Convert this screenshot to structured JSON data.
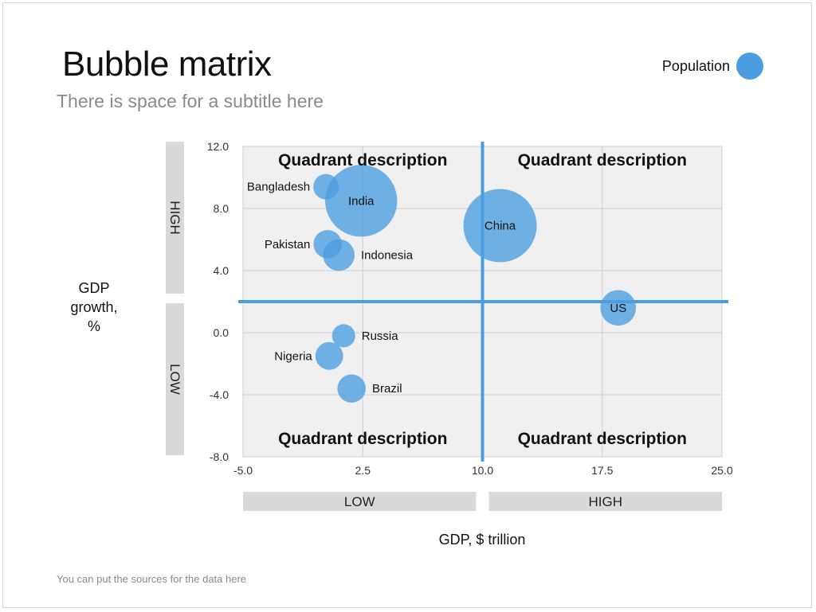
{
  "title": "Bubble matrix",
  "subtitle": "There is space for a subtitle here",
  "legend_label": "Population",
  "source_note": "You can put the sources for the data here",
  "colors": {
    "bubble": "#4a9ee0",
    "divider": "#4a9ee0",
    "plot_bg": "#f0f0f0",
    "band": "#d9d9d9",
    "grid": "#d0d0d0"
  },
  "chart_data": {
    "type": "scatter",
    "bubble": true,
    "title": "Bubble matrix",
    "subtitle": "There is space for a subtitle here",
    "xlabel": "GDP, $ trillion",
    "ylabel": "GDP growth, %",
    "ylabel_lines": [
      "GDP",
      "growth,",
      "%"
    ],
    "xlim": [
      -5.0,
      25.0
    ],
    "ylim": [
      -8.0,
      12.0
    ],
    "x_ticks": [
      -5.0,
      2.5,
      10.0,
      17.5,
      25.0
    ],
    "x_tick_labels": [
      "-5.0",
      "2.5",
      "10.0",
      "17.5",
      "25.0"
    ],
    "y_ticks": [
      -8.0,
      -4.0,
      0.0,
      4.0,
      8.0,
      12.0
    ],
    "y_tick_labels": [
      "-8.0",
      "-4.0",
      "0.0",
      "4.0",
      "8.0",
      "12.0"
    ],
    "grid": true,
    "legend": {
      "label": "Population",
      "position": "top-right"
    },
    "dividers": {
      "x": 10.0,
      "y": 2.0
    },
    "x_bands": [
      "LOW",
      "HIGH"
    ],
    "y_bands": [
      "HIGH",
      "LOW"
    ],
    "quadrant_labels": {
      "top_left": "Quadrant description",
      "top_right": "Quadrant description",
      "bottom_left": "Quadrant description",
      "bottom_right": "Quadrant description"
    },
    "points": [
      {
        "name": "Bangladesh",
        "x": 0.2,
        "y": 9.4,
        "size": 0.17,
        "label_side": "left"
      },
      {
        "name": "India",
        "x": 2.4,
        "y": 8.5,
        "size": 1.35,
        "label_side": "center"
      },
      {
        "name": "China",
        "x": 11.1,
        "y": 6.9,
        "size": 1.4,
        "label_side": "center"
      },
      {
        "name": "Pakistan",
        "x": 0.3,
        "y": 5.7,
        "size": 0.21,
        "label_side": "left"
      },
      {
        "name": "Indonesia",
        "x": 1.0,
        "y": 5.0,
        "size": 0.26,
        "label_side": "right"
      },
      {
        "name": "US",
        "x": 18.5,
        "y": 1.6,
        "size": 0.33,
        "label_side": "center"
      },
      {
        "name": "Russia",
        "x": 1.3,
        "y": -0.2,
        "size": 0.14,
        "label_side": "right"
      },
      {
        "name": "Nigeria",
        "x": 0.4,
        "y": -1.5,
        "size": 0.2,
        "label_side": "left"
      },
      {
        "name": "Brazil",
        "x": 1.8,
        "y": -3.6,
        "size": 0.21,
        "label_side": "right"
      }
    ]
  }
}
